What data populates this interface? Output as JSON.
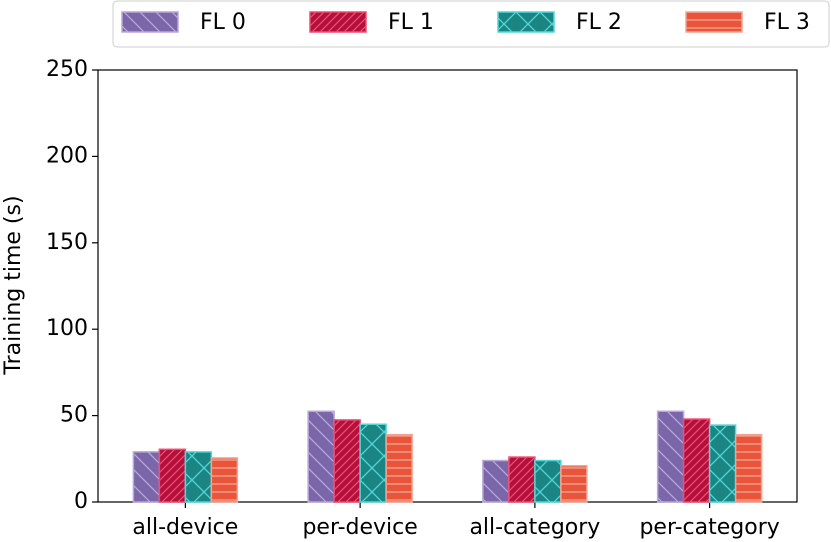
{
  "chart_data": {
    "type": "bar",
    "y_label": "Training time (s)",
    "categories": [
      "all-device",
      "per-device",
      "all-category",
      "per-category"
    ],
    "series": [
      {
        "name": "FL 0",
        "color": "#7b66a9",
        "edge": "#b7a9d8",
        "hatch": "backslash",
        "values": [
          29,
          52.5,
          24,
          52.5
        ]
      },
      {
        "name": "FL 1",
        "color": "#b3103b",
        "edge": "#ee4d72",
        "hatch": "slash",
        "values": [
          30.5,
          47.5,
          26,
          48
        ]
      },
      {
        "name": "FL 2",
        "color": "#1b8584",
        "edge": "#55d6d6",
        "hatch": "cross",
        "values": [
          29,
          45,
          24,
          44.5
        ]
      },
      {
        "name": "FL 3",
        "color": "#e8553b",
        "edge": "#f4a493",
        "hatch": "horizontal",
        "values": [
          25.5,
          39,
          21,
          39
        ]
      }
    ],
    "ylim": [
      0,
      250
    ],
    "yticks": [
      0,
      50,
      100,
      150,
      200,
      250
    ],
    "grid": false,
    "legend": "top"
  }
}
